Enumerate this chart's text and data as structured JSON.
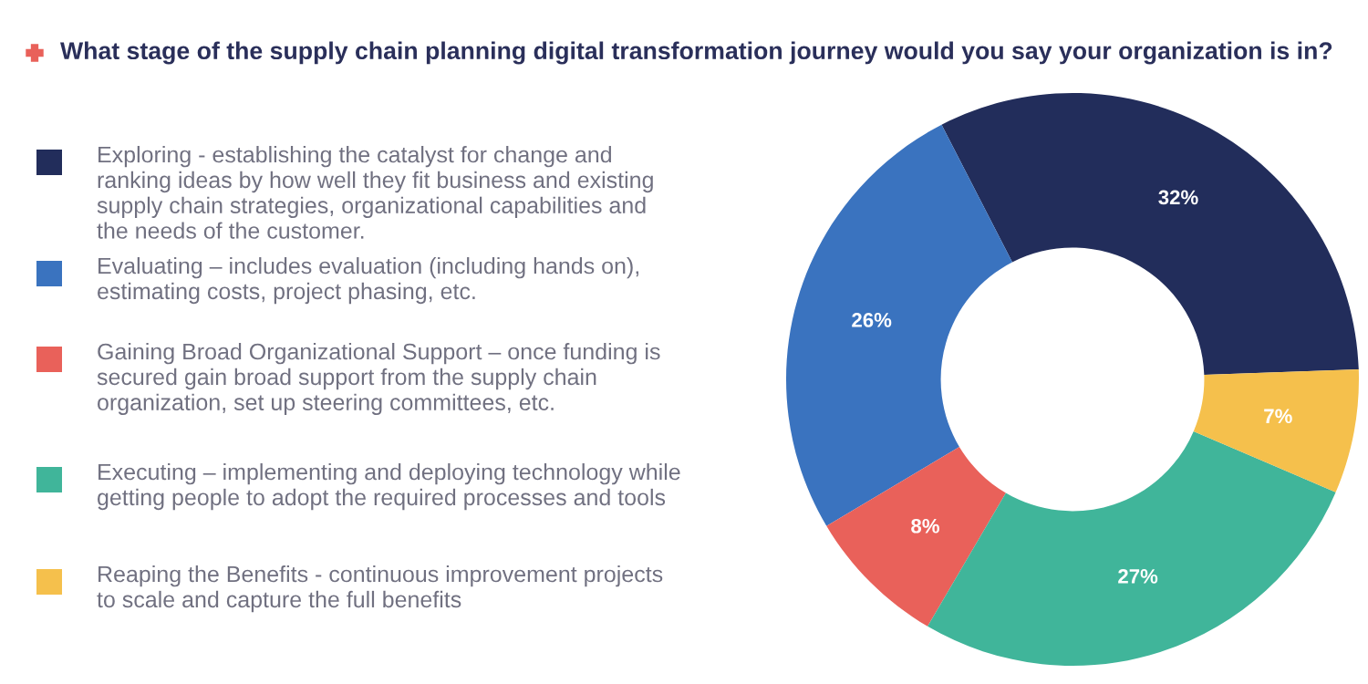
{
  "chart_data": {
    "type": "donut",
    "title": "What stage of the supply chain planning digital transformation journey would you say your organization is in?",
    "categories": [
      "Exploring - establishing the catalyst for change and ranking ideas by how well they fit business and existing supply chain strategies, organizational capabilities and the needs of the customer.",
      "Evaluating – includes evaluation (including hands on), estimating costs, project phasing, etc.",
      "Gaining Broad Organizational Support – once funding is secured gain broad support from the supply chain organization, set up steering committees, etc.",
      "Executing – implementing and deploying technology while getting people to adopt the required processes and tools",
      "Reaping the Benefits - continuous improvement projects to scale and capture the full benefits"
    ],
    "values": [
      32,
      26,
      8,
      27,
      7
    ],
    "value_labels": [
      "32%",
      "26%",
      "8%",
      "27%",
      "7%"
    ],
    "colors": [
      "#222d5b",
      "#3a73bf",
      "#e9615a",
      "#40b59a",
      "#f5c04c"
    ],
    "legend": "left"
  }
}
